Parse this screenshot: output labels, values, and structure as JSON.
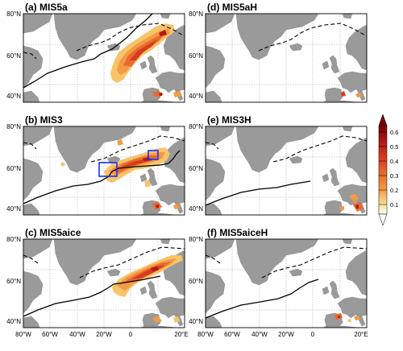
{
  "panels": [
    {
      "id": "a",
      "title": "(a) MIS5a"
    },
    {
      "id": "b",
      "title": "(b) MIS3"
    },
    {
      "id": "c",
      "title": "(c) MIS5aice"
    },
    {
      "id": "d",
      "title": "(d) MIS5aH"
    },
    {
      "id": "e",
      "title": "(e) MIS3H"
    },
    {
      "id": "f",
      "title": "(f) MIS5aiceH"
    }
  ],
  "lat_labels": [
    "80°N",
    "60°N",
    "40°N"
  ],
  "lon_labels": [
    "80°W",
    "60°W",
    "40°W",
    "20°W",
    "0",
    "20°E"
  ],
  "colorbar": {
    "ticks": [
      "0.6",
      "0.5",
      "0.4",
      "0.3",
      "0.2",
      "0.1"
    ],
    "colors": [
      "#7a0000",
      "#b01818",
      "#d83a1f",
      "#e86a2c",
      "#f29a45",
      "#f7c46a",
      "#fbe39a"
    ]
  }
}
